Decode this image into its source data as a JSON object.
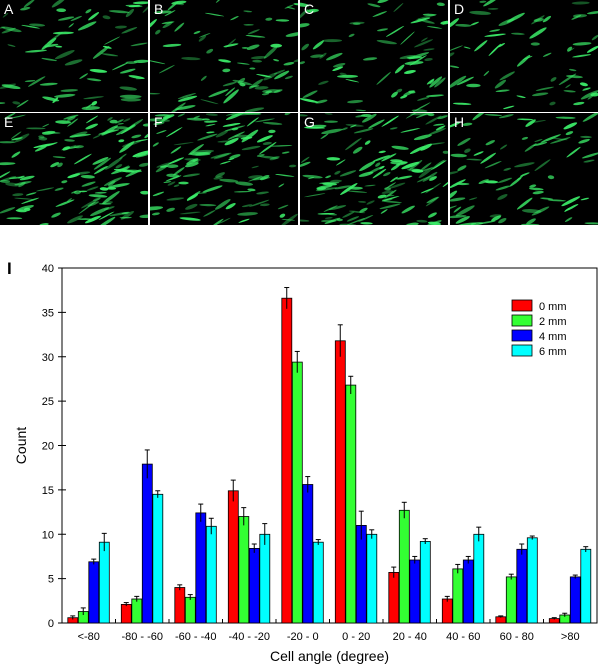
{
  "figure": {
    "panel_labels": [
      "A",
      "B",
      "C",
      "D",
      "E",
      "F",
      "G",
      "H"
    ],
    "panel_density": [
      0.45,
      0.5,
      0.45,
      0.4,
      1.0,
      0.9,
      1.0,
      0.55
    ],
    "cell_color": "#3cf06a",
    "chart_panel_label": "I"
  },
  "chart_data": {
    "type": "bar",
    "title": "",
    "xlabel": "Cell angle (degree)",
    "ylabel": "Count",
    "ylim": [
      0,
      40
    ],
    "yticks": [
      "0",
      "5",
      "10",
      "15",
      "20",
      "25",
      "30",
      "35",
      "40"
    ],
    "categories": [
      "<-80",
      "-80 - -60",
      "-60 - -40",
      "-40 - -20",
      "-20 - 0",
      "0 - 20",
      "20 - 40",
      "40 - 60",
      "60 - 80",
      ">80"
    ],
    "series": [
      {
        "name": "0 mm",
        "color": "#ff0000",
        "values": [
          0.6,
          2.1,
          4.0,
          14.9,
          36.6,
          31.8,
          5.7,
          2.7,
          0.7,
          0.5
        ],
        "errors": [
          0.2,
          0.2,
          0.3,
          1.2,
          1.2,
          1.8,
          0.6,
          0.3,
          0.1,
          0.1
        ]
      },
      {
        "name": "2 mm",
        "color": "#33ff33",
        "values": [
          1.3,
          2.7,
          2.9,
          12.0,
          29.4,
          26.8,
          12.7,
          6.1,
          5.2,
          0.9
        ],
        "errors": [
          0.4,
          0.3,
          0.3,
          1.0,
          1.2,
          1.0,
          0.9,
          0.5,
          0.3,
          0.2
        ]
      },
      {
        "name": "4 mm",
        "color": "#0000ff",
        "values": [
          6.9,
          17.9,
          12.4,
          8.4,
          15.6,
          11.0,
          7.1,
          7.1,
          8.3,
          5.2
        ],
        "errors": [
          0.3,
          1.6,
          1.0,
          0.5,
          0.9,
          1.6,
          0.4,
          0.4,
          0.6,
          0.2
        ]
      },
      {
        "name": "6 mm",
        "color": "#00ffff",
        "values": [
          9.1,
          14.5,
          10.9,
          10.0,
          9.1,
          10.0,
          9.2,
          10.0,
          9.6,
          8.3
        ],
        "errors": [
          1.0,
          0.4,
          0.9,
          1.2,
          0.3,
          0.5,
          0.3,
          0.8,
          0.2,
          0.3
        ]
      }
    ]
  }
}
